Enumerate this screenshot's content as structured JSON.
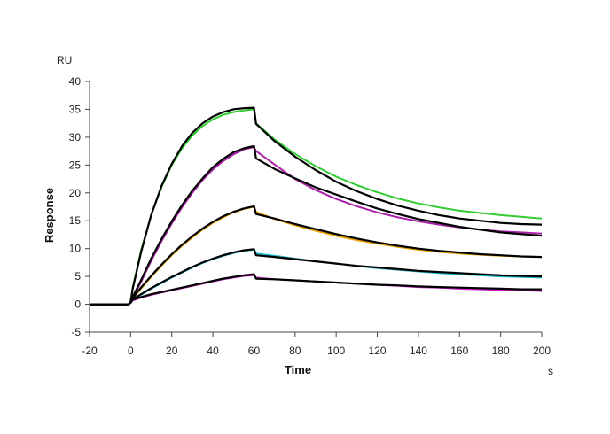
{
  "chart_data": {
    "type": "line",
    "xlabel": "Time",
    "ylabel": "Response",
    "x_unit": "s",
    "y_unit": "RU",
    "xlim": [
      -20,
      200
    ],
    "ylim": [
      -5,
      40
    ],
    "x_ticks": [
      -20,
      0,
      20,
      40,
      60,
      80,
      100,
      120,
      140,
      160,
      180,
      200
    ],
    "y_ticks": [
      -5,
      0,
      5,
      10,
      15,
      20,
      25,
      30,
      35,
      40
    ],
    "grid": false,
    "series": [
      {
        "color": "#33cc33",
        "x": [
          -20,
          -1,
          0,
          1,
          5,
          10,
          15,
          20,
          25,
          30,
          35,
          40,
          45,
          50,
          55,
          60,
          61,
          70,
          80,
          90,
          100,
          110,
          120,
          130,
          140,
          150,
          160,
          170,
          180,
          190,
          200
        ],
        "y": [
          0,
          0,
          0.5,
          3.0,
          9.6,
          16.0,
          21.0,
          25.0,
          28.0,
          30.3,
          32.0,
          33.2,
          34.0,
          34.5,
          34.8,
          35.0,
          32.5,
          29.6,
          27.0,
          24.8,
          22.9,
          21.4,
          20.1,
          19.0,
          18.1,
          17.4,
          16.8,
          16.4,
          16.0,
          15.7,
          15.4
        ]
      },
      {
        "color": "#000000",
        "x": [
          -20,
          -1,
          0,
          1,
          5,
          10,
          15,
          20,
          25,
          30,
          35,
          40,
          45,
          50,
          55,
          60,
          61,
          70,
          80,
          90,
          100,
          110,
          120,
          130,
          140,
          150,
          160,
          170,
          180,
          190,
          200
        ],
        "y": [
          0,
          0,
          0.5,
          2.8,
          9.3,
          16.0,
          21.2,
          25.2,
          28.4,
          30.8,
          32.5,
          33.7,
          34.5,
          35.0,
          35.2,
          35.3,
          32.4,
          29.3,
          26.5,
          24.1,
          22.0,
          20.3,
          18.9,
          17.7,
          16.8,
          16.0,
          15.4,
          15.0,
          14.6,
          14.4,
          14.3
        ]
      },
      {
        "color": "#aa22aa",
        "x": [
          -20,
          -1,
          0,
          1,
          5,
          10,
          15,
          20,
          25,
          30,
          35,
          40,
          45,
          50,
          55,
          60,
          61,
          70,
          80,
          90,
          100,
          110,
          120,
          130,
          140,
          150,
          160,
          170,
          180,
          190,
          200
        ],
        "y": [
          0,
          0,
          0.3,
          1.2,
          4.0,
          7.8,
          11.3,
          14.5,
          17.4,
          20.0,
          22.3,
          24.2,
          25.7,
          26.9,
          27.8,
          28.2,
          27.5,
          25.1,
          22.5,
          20.5,
          18.9,
          17.6,
          16.5,
          15.6,
          14.9,
          14.3,
          13.8,
          13.4,
          13.1,
          12.9,
          12.7
        ]
      },
      {
        "color": "#000000",
        "x": [
          -20,
          -1,
          0,
          1,
          5,
          10,
          15,
          20,
          25,
          30,
          35,
          40,
          45,
          50,
          55,
          60,
          61,
          70,
          80,
          90,
          100,
          110,
          120,
          130,
          140,
          150,
          160,
          170,
          180,
          190,
          200
        ],
        "y": [
          0,
          0,
          0.3,
          1.3,
          4.3,
          8.2,
          11.7,
          14.9,
          17.8,
          20.4,
          22.6,
          24.6,
          26.1,
          27.3,
          28.0,
          28.4,
          26.2,
          24.3,
          22.6,
          21.0,
          19.7,
          18.4,
          17.2,
          16.2,
          15.3,
          14.6,
          13.9,
          13.4,
          12.9,
          12.6,
          12.3
        ]
      },
      {
        "color": "#e8a000",
        "x": [
          -20,
          -1,
          0,
          1,
          5,
          10,
          15,
          20,
          25,
          30,
          35,
          40,
          45,
          50,
          55,
          60,
          61,
          70,
          80,
          90,
          100,
          110,
          120,
          130,
          140,
          150,
          160,
          170,
          180,
          190,
          200
        ],
        "y": [
          0,
          0,
          0.3,
          1.0,
          2.8,
          4.9,
          6.9,
          8.8,
          10.5,
          12.0,
          13.4,
          14.6,
          15.6,
          16.5,
          17.1,
          17.5,
          16.6,
          15.3,
          14.2,
          13.2,
          12.3,
          11.5,
          10.9,
          10.3,
          9.8,
          9.4,
          9.1,
          8.9,
          8.7,
          8.6,
          8.5
        ]
      },
      {
        "color": "#000000",
        "x": [
          -20,
          -1,
          0,
          1,
          5,
          10,
          15,
          20,
          25,
          30,
          35,
          40,
          45,
          50,
          55,
          60,
          61,
          70,
          80,
          90,
          100,
          110,
          120,
          130,
          140,
          150,
          160,
          170,
          180,
          190,
          200
        ],
        "y": [
          0,
          0,
          0.3,
          1.1,
          3.0,
          5.1,
          7.1,
          9.0,
          10.7,
          12.2,
          13.6,
          14.8,
          15.8,
          16.6,
          17.2,
          17.6,
          16.2,
          15.4,
          14.4,
          13.5,
          12.6,
          11.8,
          11.1,
          10.5,
          10.0,
          9.6,
          9.3,
          9.0,
          8.8,
          8.6,
          8.5
        ]
      },
      {
        "color": "#22bbcc",
        "x": [
          -20,
          -1,
          0,
          1,
          5,
          10,
          15,
          20,
          25,
          30,
          35,
          40,
          45,
          50,
          55,
          60,
          61,
          70,
          80,
          90,
          100,
          110,
          120,
          130,
          140,
          150,
          160,
          170,
          180,
          190,
          200
        ],
        "y": [
          0,
          0,
          0.3,
          0.8,
          1.7,
          2.8,
          3.8,
          4.8,
          5.7,
          6.6,
          7.4,
          8.1,
          8.7,
          9.2,
          9.6,
          9.8,
          9.1,
          8.7,
          8.2,
          7.7,
          7.3,
          6.9,
          6.5,
          6.2,
          5.9,
          5.6,
          5.4,
          5.2,
          5.0,
          4.9,
          4.8
        ]
      },
      {
        "color": "#000000",
        "x": [
          -20,
          -1,
          0,
          1,
          5,
          10,
          15,
          20,
          25,
          30,
          35,
          40,
          45,
          50,
          55,
          60,
          61,
          70,
          80,
          90,
          100,
          110,
          120,
          130,
          140,
          150,
          160,
          170,
          180,
          190,
          200
        ],
        "y": [
          0,
          0,
          0.3,
          0.9,
          1.8,
          2.9,
          3.9,
          4.9,
          5.8,
          6.7,
          7.5,
          8.2,
          8.8,
          9.3,
          9.7,
          9.9,
          8.8,
          8.5,
          8.1,
          7.7,
          7.3,
          6.9,
          6.6,
          6.3,
          6.0,
          5.8,
          5.6,
          5.4,
          5.2,
          5.1,
          5.0
        ]
      },
      {
        "color": "#cc22cc",
        "x": [
          -20,
          -1,
          0,
          1,
          5,
          10,
          15,
          20,
          25,
          30,
          35,
          40,
          45,
          50,
          55,
          60,
          61,
          70,
          80,
          90,
          100,
          110,
          120,
          130,
          140,
          150,
          160,
          170,
          180,
          190,
          200
        ],
        "y": [
          0,
          0,
          0.3,
          0.7,
          1.2,
          1.7,
          2.1,
          2.5,
          2.9,
          3.3,
          3.7,
          4.1,
          4.5,
          4.8,
          5.1,
          5.2,
          4.8,
          4.5,
          4.3,
          4.1,
          3.9,
          3.7,
          3.5,
          3.3,
          3.1,
          3.0,
          2.8,
          2.7,
          2.6,
          2.5,
          2.4
        ]
      },
      {
        "color": "#000000",
        "x": [
          -20,
          -1,
          0,
          1,
          5,
          10,
          15,
          20,
          25,
          30,
          35,
          40,
          45,
          50,
          55,
          60,
          61,
          70,
          80,
          90,
          100,
          110,
          120,
          130,
          140,
          150,
          160,
          170,
          180,
          190,
          200
        ],
        "y": [
          0,
          0,
          0.3,
          0.8,
          1.3,
          1.8,
          2.2,
          2.6,
          3.0,
          3.4,
          3.8,
          4.2,
          4.6,
          4.9,
          5.2,
          5.4,
          4.6,
          4.5,
          4.3,
          4.1,
          3.9,
          3.7,
          3.5,
          3.4,
          3.2,
          3.1,
          3.0,
          2.9,
          2.8,
          2.7,
          2.7
        ]
      }
    ]
  }
}
